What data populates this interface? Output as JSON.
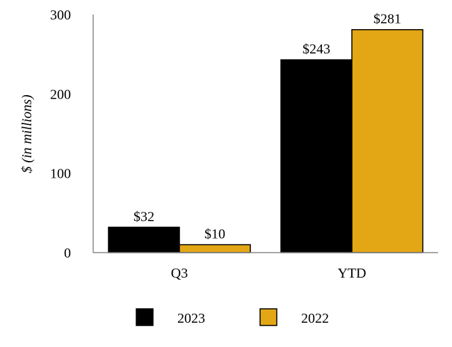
{
  "chart_data": {
    "type": "bar",
    "title": "",
    "xlabel": "",
    "ylabel": "$ (in millions)",
    "ylim": [
      0,
      300
    ],
    "yticks": [
      "0",
      "100",
      "200",
      "300"
    ],
    "categories": [
      "Q3",
      "YTD"
    ],
    "series": [
      {
        "name": "2023",
        "values": [
          32,
          243
        ],
        "labels": [
          "$32",
          "$243"
        ],
        "color": "#000000"
      },
      {
        "name": "2022",
        "values": [
          10,
          281
        ],
        "labels": [
          "$10",
          "$281"
        ],
        "color": "#E3A716"
      }
    ],
    "grid": false,
    "legend": "bottom"
  }
}
